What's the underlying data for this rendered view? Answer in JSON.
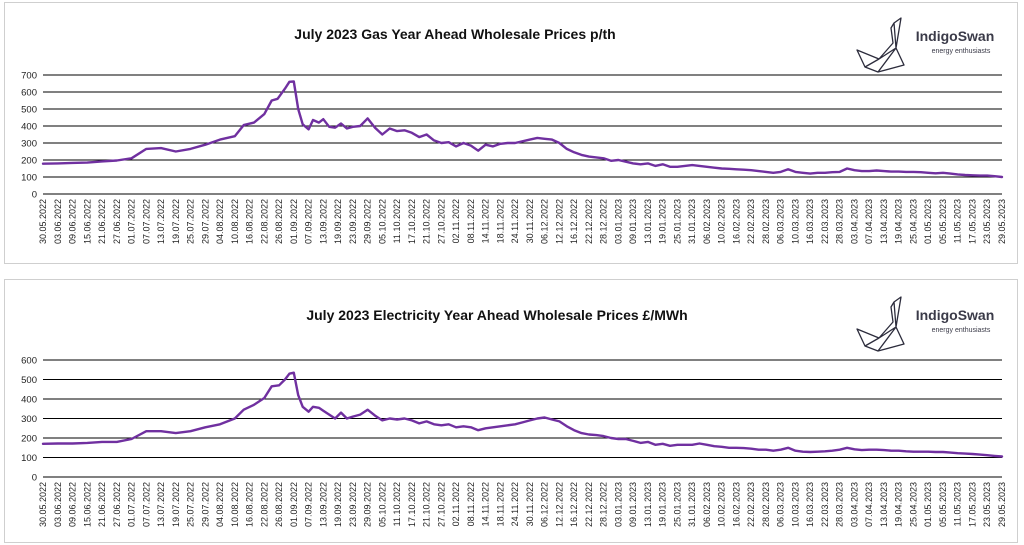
{
  "brand": {
    "name": "IndigoSwan",
    "tagline": "energy enthusiasts",
    "logo_icon": "origami-swan-icon"
  },
  "colors": {
    "series": "#7030a0",
    "grid": "#000000"
  },
  "x_labels": [
    "30.05.2022",
    "03.06.2022",
    "09.06.2022",
    "15.06.2022",
    "21.06.2022",
    "27.06.2022",
    "01.07.2022",
    "07.07.2022",
    "13.07.2022",
    "19.07.2022",
    "25.07.2022",
    "29.07.2022",
    "04.08.2022",
    "10.08.2022",
    "16.08.2022",
    "22.08.2022",
    "26.08.2022",
    "01.09.2022",
    "07.09.2022",
    "13.09.2022",
    "19.09.2022",
    "23.09.2022",
    "29.09.2022",
    "05.10.2022",
    "11.10.2022",
    "17.10.2022",
    "21.10.2022",
    "27.10.2022",
    "02.11.2022",
    "08.11.2022",
    "14.11.2022",
    "18.11.2022",
    "24.11.2022",
    "30.11.2022",
    "06.12.2022",
    "12.12.2022",
    "16.12.2022",
    "22.12.2022",
    "28.12.2022",
    "03.01.2023",
    "09.01.2023",
    "13.01.2023",
    "19.01.2023",
    "25.01.2023",
    "31.01.2023",
    "06.02.2023",
    "10.02.2023",
    "16.02.2023",
    "22.02.2023",
    "28.02.2023",
    "06.03.2023",
    "10.03.2023",
    "16.03.2023",
    "22.03.2023",
    "28.03.2023",
    "03.04.2023",
    "07.04.2023",
    "13.04.2023",
    "19.04.2023",
    "25.04.2023",
    "01.05.2023",
    "05.05.2023",
    "11.05.2023",
    "17.05.2023",
    "23.05.2023",
    "29.05.2023"
  ],
  "chart_data": [
    {
      "type": "line",
      "title": "July 2023 Gas Year Ahead Wholesale Prices p/th",
      "ylim": [
        0,
        700
      ],
      "yticks": [
        0,
        100,
        200,
        300,
        400,
        500,
        600,
        700
      ],
      "grid": true,
      "x_labels_printed": "every 4-6 days from 30.05.2022 to 29.05.2023",
      "series": [
        {
          "values": [
            [
              0,
              178
            ],
            [
              1,
              180
            ],
            [
              2,
              183
            ],
            [
              3,
              185
            ],
            [
              4,
              192
            ],
            [
              5,
              197
            ],
            [
              6,
              210
            ],
            [
              7,
              265
            ],
            [
              8,
              270
            ],
            [
              9,
              250
            ],
            [
              10,
              265
            ],
            [
              11,
              290
            ],
            [
              12,
              320
            ],
            [
              13,
              340
            ],
            [
              13.6,
              405
            ],
            [
              14.3,
              420
            ],
            [
              15,
              470
            ],
            [
              15.5,
              550
            ],
            [
              15.9,
              560
            ],
            [
              16.4,
              620
            ],
            [
              16.7,
              660
            ],
            [
              17,
              662
            ],
            [
              17.3,
              500
            ],
            [
              17.6,
              410
            ],
            [
              18,
              380
            ],
            [
              18.3,
              435
            ],
            [
              18.7,
              420
            ],
            [
              19,
              440
            ],
            [
              19.4,
              395
            ],
            [
              19.8,
              390
            ],
            [
              20.2,
              415
            ],
            [
              20.6,
              385
            ],
            [
              21,
              395
            ],
            [
              21.5,
              400
            ],
            [
              22,
              445
            ],
            [
              22.5,
              390
            ],
            [
              23,
              350
            ],
            [
              23.5,
              385
            ],
            [
              24,
              370
            ],
            [
              24.5,
              375
            ],
            [
              25,
              360
            ],
            [
              25.5,
              335
            ],
            [
              26,
              350
            ],
            [
              26.5,
              315
            ],
            [
              27,
              300
            ],
            [
              27.5,
              305
            ],
            [
              28,
              280
            ],
            [
              28.5,
              300
            ],
            [
              29,
              285
            ],
            [
              29.5,
              255
            ],
            [
              30,
              290
            ],
            [
              30.5,
              280
            ],
            [
              31,
              295
            ],
            [
              31.5,
              300
            ],
            [
              32,
              300
            ],
            [
              32.5,
              310
            ],
            [
              33,
              320
            ],
            [
              33.5,
              330
            ],
            [
              34,
              325
            ],
            [
              34.5,
              320
            ],
            [
              35,
              300
            ],
            [
              35.5,
              265
            ],
            [
              36,
              245
            ],
            [
              36.5,
              230
            ],
            [
              37,
              220
            ],
            [
              37.5,
              215
            ],
            [
              38,
              210
            ],
            [
              38.5,
              195
            ],
            [
              39,
              200
            ],
            [
              39.5,
              190
            ],
            [
              40,
              180
            ],
            [
              40.5,
              175
            ],
            [
              41,
              180
            ],
            [
              41.5,
              165
            ],
            [
              42,
              175
            ],
            [
              42.5,
              160
            ],
            [
              43,
              160
            ],
            [
              43.5,
              165
            ],
            [
              44,
              170
            ],
            [
              44.5,
              165
            ],
            [
              45,
              160
            ],
            [
              45.5,
              155
            ],
            [
              46,
              150
            ],
            [
              46.5,
              148
            ],
            [
              47,
              145
            ],
            [
              47.5,
              143
            ],
            [
              48,
              140
            ],
            [
              48.5,
              135
            ],
            [
              49,
              130
            ],
            [
              49.5,
              125
            ],
            [
              50,
              130
            ],
            [
              50.5,
              145
            ],
            [
              51,
              130
            ],
            [
              51.5,
              125
            ],
            [
              52,
              120
            ],
            [
              52.5,
              125
            ],
            [
              53,
              125
            ],
            [
              53.5,
              128
            ],
            [
              54,
              130
            ],
            [
              54.5,
              150
            ],
            [
              55,
              140
            ],
            [
              55.5,
              135
            ],
            [
              56,
              135
            ],
            [
              56.5,
              138
            ],
            [
              57,
              135
            ],
            [
              57.5,
              132
            ],
            [
              58,
              132
            ],
            [
              58.5,
              130
            ],
            [
              59,
              130
            ],
            [
              59.5,
              128
            ],
            [
              60,
              125
            ],
            [
              60.5,
              122
            ],
            [
              61,
              125
            ],
            [
              61.5,
              120
            ],
            [
              62,
              115
            ],
            [
              62.5,
              112
            ],
            [
              63,
              110
            ],
            [
              63.5,
              108
            ],
            [
              64,
              108
            ],
            [
              64.5,
              105
            ],
            [
              65,
              100
            ]
          ]
        }
      ]
    },
    {
      "type": "line",
      "title": "July 2023 Electricity Year Ahead Wholesale Prices £/MWh",
      "ylim": [
        0,
        600
      ],
      "yticks": [
        0,
        100,
        200,
        300,
        400,
        500,
        600
      ],
      "grid": true,
      "series": [
        {
          "values": [
            [
              0,
              170
            ],
            [
              1,
              172
            ],
            [
              2,
              172
            ],
            [
              3,
              175
            ],
            [
              4,
              180
            ],
            [
              5,
              180
            ],
            [
              6,
              195
            ],
            [
              7,
              235
            ],
            [
              8,
              235
            ],
            [
              9,
              225
            ],
            [
              10,
              235
            ],
            [
              11,
              255
            ],
            [
              12,
              270
            ],
            [
              13,
              300
            ],
            [
              13.6,
              345
            ],
            [
              14.3,
              370
            ],
            [
              15,
              405
            ],
            [
              15.5,
              465
            ],
            [
              16,
              470
            ],
            [
              16.4,
              500
            ],
            [
              16.7,
              530
            ],
            [
              17,
              535
            ],
            [
              17.3,
              420
            ],
            [
              17.6,
              360
            ],
            [
              18,
              335
            ],
            [
              18.3,
              360
            ],
            [
              18.7,
              355
            ],
            [
              19,
              340
            ],
            [
              19.4,
              320
            ],
            [
              19.8,
              300
            ],
            [
              20.2,
              330
            ],
            [
              20.6,
              300
            ],
            [
              21,
              310
            ],
            [
              21.5,
              320
            ],
            [
              22,
              345
            ],
            [
              22.5,
              315
            ],
            [
              23,
              290
            ],
            [
              23.5,
              300
            ],
            [
              24,
              295
            ],
            [
              24.5,
              300
            ],
            [
              25,
              290
            ],
            [
              25.5,
              275
            ],
            [
              26,
              285
            ],
            [
              26.5,
              270
            ],
            [
              27,
              265
            ],
            [
              27.5,
              270
            ],
            [
              28,
              255
            ],
            [
              28.5,
              260
            ],
            [
              29,
              255
            ],
            [
              29.5,
              240
            ],
            [
              30,
              250
            ],
            [
              30.5,
              255
            ],
            [
              31,
              260
            ],
            [
              31.5,
              265
            ],
            [
              32,
              270
            ],
            [
              32.5,
              280
            ],
            [
              33,
              290
            ],
            [
              33.5,
              300
            ],
            [
              34,
              305
            ],
            [
              34.5,
              295
            ],
            [
              35,
              285
            ],
            [
              35.5,
              260
            ],
            [
              36,
              240
            ],
            [
              36.5,
              225
            ],
            [
              37,
              218
            ],
            [
              37.5,
              215
            ],
            [
              38,
              210
            ],
            [
              38.5,
              200
            ],
            [
              39,
              195
            ],
            [
              39.5,
              195
            ],
            [
              40,
              185
            ],
            [
              40.5,
              175
            ],
            [
              41,
              180
            ],
            [
              41.5,
              165
            ],
            [
              42,
              170
            ],
            [
              42.5,
              160
            ],
            [
              43,
              165
            ],
            [
              43.5,
              165
            ],
            [
              44,
              165
            ],
            [
              44.5,
              172
            ],
            [
              45,
              165
            ],
            [
              45.5,
              158
            ],
            [
              46,
              155
            ],
            [
              46.5,
              150
            ],
            [
              47,
              150
            ],
            [
              47.5,
              148
            ],
            [
              48,
              145
            ],
            [
              48.5,
              140
            ],
            [
              49,
              140
            ],
            [
              49.5,
              135
            ],
            [
              50,
              140
            ],
            [
              50.5,
              150
            ],
            [
              51,
              135
            ],
            [
              51.5,
              130
            ],
            [
              52,
              128
            ],
            [
              52.5,
              130
            ],
            [
              53,
              132
            ],
            [
              53.5,
              135
            ],
            [
              54,
              140
            ],
            [
              54.5,
              150
            ],
            [
              55,
              142
            ],
            [
              55.5,
              138
            ],
            [
              56,
              140
            ],
            [
              56.5,
              140
            ],
            [
              57,
              138
            ],
            [
              57.5,
              135
            ],
            [
              58,
              135
            ],
            [
              58.5,
              132
            ],
            [
              59,
              130
            ],
            [
              59.5,
              130
            ],
            [
              60,
              130
            ],
            [
              60.5,
              128
            ],
            [
              61,
              128
            ],
            [
              61.5,
              125
            ],
            [
              62,
              122
            ],
            [
              62.5,
              120
            ],
            [
              63,
              118
            ],
            [
              63.5,
              115
            ],
            [
              64,
              112
            ],
            [
              64.5,
              108
            ],
            [
              65,
              105
            ]
          ]
        }
      ]
    }
  ]
}
